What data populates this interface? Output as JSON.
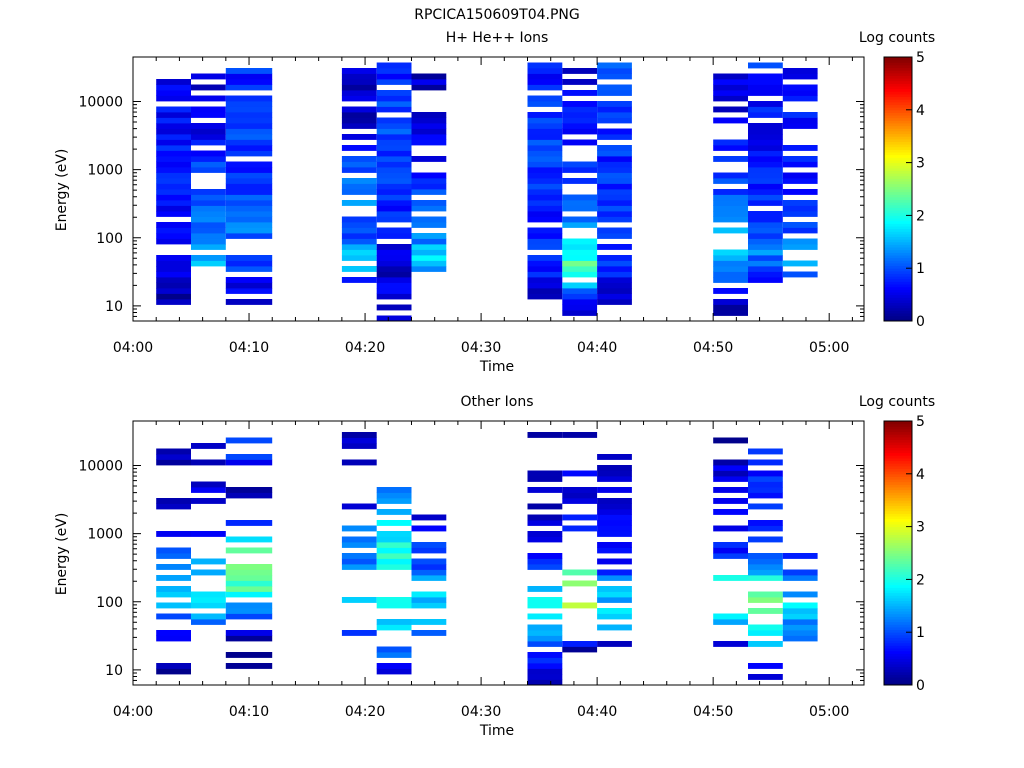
{
  "figure_title": "RPCICA150609T04.PNG",
  "chart_data": [
    {
      "type": "heatmap",
      "title": "H+ He++ Ions",
      "xlabel": "Time",
      "ylabel": "Energy (eV)",
      "x_ticks": [
        "04:00",
        "04:10",
        "04:20",
        "04:30",
        "04:40",
        "04:50",
        "05:00"
      ],
      "y_ticks": [
        "10",
        "100",
        "1000",
        "10000"
      ],
      "y_scale": "log",
      "ylim": [
        6,
        45000
      ],
      "xlim": [
        "04:00",
        "05:03"
      ],
      "colorbar": {
        "label": "Log counts",
        "ticks": [
          "0",
          "1",
          "2",
          "3",
          "4",
          "5"
        ],
        "range": [
          0,
          5
        ]
      },
      "columns": [
        {
          "t0": "04:02",
          "t1": "04:05",
          "profile": [
            [
              10,
              0.1
            ],
            [
              25,
              0.4
            ],
            [
              80,
              0.6
            ],
            [
              300,
              0.7
            ],
            [
              2000,
              0.7
            ],
            [
              20000,
              0.6
            ]
          ],
          "gap": 0.12,
          "seed": 11
        },
        {
          "t0": "04:05",
          "t1": "04:08",
          "profile": [
            [
              25,
              0.5
            ],
            [
              45,
              1.6
            ],
            [
              100,
              1.1
            ],
            [
              800,
              1.0
            ],
            [
              5000,
              0.5
            ],
            [
              30000,
              0.3
            ]
          ],
          "gap": 0.28,
          "seed": 12
        },
        {
          "t0": "04:08",
          "t1": "04:12",
          "profile": [
            [
              10,
              0.2
            ],
            [
              40,
              1.0
            ],
            [
              150,
              1.2
            ],
            [
              1000,
              0.9
            ],
            [
              5000,
              0.9
            ],
            [
              30000,
              0.8
            ]
          ],
          "gap": 0.15,
          "seed": 13
        },
        {
          "t0": "04:18",
          "t1": "04:21",
          "profile": [
            [
              22,
              0.6
            ],
            [
              45,
              1.8
            ],
            [
              100,
              1.0
            ],
            [
              600,
              1.3
            ],
            [
              5000,
              0.4
            ],
            [
              30000,
              0.3
            ]
          ],
          "gap": 0.3,
          "seed": 14
        },
        {
          "t0": "04:21",
          "t1": "04:24",
          "profile": [
            [
              6,
              0.6
            ],
            [
              30,
              0.4
            ],
            [
              100,
              0.6
            ],
            [
              1000,
              0.9
            ],
            [
              10000,
              1.0
            ],
            [
              40000,
              0.6
            ]
          ],
          "gap": 0.05,
          "seed": 15
        },
        {
          "t0": "04:24",
          "t1": "04:27",
          "profile": [
            [
              25,
              0.8
            ],
            [
              45,
              1.9
            ],
            [
              100,
              1.2
            ],
            [
              600,
              0.8
            ],
            [
              5000,
              0.4
            ],
            [
              30000,
              0.3
            ]
          ],
          "gap": 0.32,
          "seed": 16
        },
        {
          "t0": "04:34",
          "t1": "04:37",
          "profile": [
            [
              10,
              0.2
            ],
            [
              40,
              0.8
            ],
            [
              200,
              0.8
            ],
            [
              1000,
              0.9
            ],
            [
              10000,
              0.8
            ],
            [
              40000,
              0.7
            ]
          ],
          "gap": 0.1,
          "seed": 17
        },
        {
          "t0": "04:37",
          "t1": "04:40",
          "profile": [
            [
              7,
              0.1
            ],
            [
              40,
              2.3
            ],
            [
              100,
              1.5
            ],
            [
              1000,
              0.8
            ],
            [
              10000,
              0.6
            ],
            [
              30000,
              0.5
            ]
          ],
          "gap": 0.3,
          "seed": 18
        },
        {
          "t0": "04:40",
          "t1": "04:43",
          "profile": [
            [
              10,
              0.2
            ],
            [
              40,
              0.8
            ],
            [
              200,
              0.9
            ],
            [
              1000,
              0.8
            ],
            [
              10000,
              0.9
            ],
            [
              40000,
              1.0
            ]
          ],
          "gap": 0.18,
          "seed": 19
        },
        {
          "t0": "04:50",
          "t1": "04:53",
          "profile": [
            [
              7,
              0.1
            ],
            [
              30,
              1.3
            ],
            [
              70,
              1.7
            ],
            [
              300,
              1.1
            ],
            [
              2000,
              0.6
            ],
            [
              30000,
              0.4
            ]
          ],
          "gap": 0.3,
          "seed": 20
        },
        {
          "t0": "04:53",
          "t1": "04:56",
          "profile": [
            [
              22,
              0.7
            ],
            [
              60,
              1.2
            ],
            [
              300,
              0.8
            ],
            [
              3000,
              0.6
            ],
            [
              20000,
              0.8
            ],
            [
              40000,
              0.9
            ]
          ],
          "gap": 0.12,
          "seed": 21
        },
        {
          "t0": "04:56",
          "t1": "04:59",
          "profile": [
            [
              22,
              0.8
            ],
            [
              50,
              1.5
            ],
            [
              150,
              0.9
            ],
            [
              1000,
              0.8
            ],
            [
              10000,
              0.7
            ],
            [
              30000,
              0.6
            ]
          ],
          "gap": 0.28,
          "seed": 22
        }
      ]
    },
    {
      "type": "heatmap",
      "title": "Other Ions",
      "xlabel": "Time",
      "ylabel": "Energy (eV)",
      "x_ticks": [
        "04:00",
        "04:10",
        "04:20",
        "04:30",
        "04:40",
        "04:50",
        "05:00"
      ],
      "y_ticks": [
        "10",
        "100",
        "1000",
        "10000"
      ],
      "y_scale": "log",
      "ylim": [
        6,
        45000
      ],
      "xlim": [
        "04:00",
        "05:03"
      ],
      "colorbar": {
        "label": "Log counts",
        "ticks": [
          "0",
          "1",
          "2",
          "3",
          "4",
          "5"
        ],
        "range": [
          0,
          5
        ]
      },
      "columns": [
        {
          "t0": "04:02",
          "t1": "04:05",
          "profile": [
            [
              6,
              0.1
            ],
            [
              30,
              0.5
            ],
            [
              100,
              1.7
            ],
            [
              300,
              1.4
            ],
            [
              1000,
              0.4
            ],
            [
              3000,
              0.1
            ],
            [
              40000,
              0.2
            ]
          ],
          "gap": 0.55,
          "seed": 31
        },
        {
          "t0": "04:05",
          "t1": "04:08",
          "profile": [
            [
              25,
              0.4
            ],
            [
              60,
              1.3
            ],
            [
              150,
              1.8
            ],
            [
              400,
              1.4
            ],
            [
              900,
              0.6
            ],
            [
              20000,
              0.2
            ]
          ],
          "gap": 0.6,
          "seed": 32
        },
        {
          "t0": "04:08",
          "t1": "04:12",
          "profile": [
            [
              10,
              0.2
            ],
            [
              40,
              0.3
            ],
            [
              150,
              2.2
            ],
            [
              500,
              2.4
            ],
            [
              900,
              1.6
            ],
            [
              3000,
              0.2
            ],
            [
              25000,
              1.0
            ]
          ],
          "gap": 0.55,
          "seed": 33
        },
        {
          "t0": "04:18",
          "t1": "04:21",
          "profile": [
            [
              25,
              0.8
            ],
            [
              80,
              1.8
            ],
            [
              300,
              1.2
            ],
            [
              1200,
              1.4
            ],
            [
              3000,
              0.1
            ],
            [
              30000,
              0.3
            ]
          ],
          "gap": 0.6,
          "seed": 34
        },
        {
          "t0": "04:21",
          "t1": "04:24",
          "profile": [
            [
              7,
              0.3
            ],
            [
              30,
              1.5
            ],
            [
              150,
              2.2
            ],
            [
              800,
              1.9
            ],
            [
              2000,
              1.7
            ],
            [
              10000,
              1.1
            ]
          ],
          "gap": 0.45,
          "seed": 35
        },
        {
          "t0": "04:24",
          "t1": "04:27",
          "profile": [
            [
              25,
              0.8
            ],
            [
              80,
              1.8
            ],
            [
              300,
              1.1
            ],
            [
              900,
              0.7
            ],
            [
              2000,
              0.5
            ]
          ],
          "gap": 0.45,
          "seed": 36
        },
        {
          "t0": "04:34",
          "t1": "04:37",
          "profile": [
            [
              6,
              0.1
            ],
            [
              30,
              1.2
            ],
            [
              80,
              1.9
            ],
            [
              300,
              1.0
            ],
            [
              800,
              0.6
            ],
            [
              3000,
              0.2
            ],
            [
              30000,
              0.3
            ]
          ],
          "gap": 0.55,
          "seed": 37
        },
        {
          "t0": "04:37",
          "t1": "04:40",
          "profile": [
            [
              20,
              0.1
            ],
            [
              50,
              2.3
            ],
            [
              100,
              2.8
            ],
            [
              300,
              2.0
            ],
            [
              400,
              0.9
            ],
            [
              30000,
              0.2
            ]
          ],
          "gap": 0.6,
          "seed": 38
        },
        {
          "t0": "04:40",
          "t1": "04:43",
          "profile": [
            [
              20,
              0.2
            ],
            [
              50,
              1.6
            ],
            [
              150,
              1.5
            ],
            [
              400,
              0.6
            ],
            [
              15000,
              0.2
            ]
          ],
          "gap": 0.6,
          "seed": 39
        },
        {
          "t0": "04:50",
          "t1": "04:53",
          "profile": [
            [
              20,
              0.2
            ],
            [
              40,
              1.3
            ],
            [
              100,
              2.2
            ],
            [
              300,
              1.9
            ],
            [
              450,
              0.8
            ],
            [
              25000,
              0.3
            ]
          ],
          "gap": 0.55,
          "seed": 40
        },
        {
          "t0": "04:53",
          "t1": "04:56",
          "profile": [
            [
              6,
              0.1
            ],
            [
              30,
              1.8
            ],
            [
              80,
              2.6
            ],
            [
              200,
              2.0
            ],
            [
              500,
              0.9
            ],
            [
              25000,
              0.7
            ]
          ],
          "gap": 0.5,
          "seed": 41
        },
        {
          "t0": "04:56",
          "t1": "04:59",
          "profile": [
            [
              25,
              0.9
            ],
            [
              80,
              1.7
            ],
            [
              300,
              1.1
            ],
            [
              500,
              0.5
            ]
          ],
          "gap": 0.45,
          "seed": 42
        }
      ]
    }
  ]
}
